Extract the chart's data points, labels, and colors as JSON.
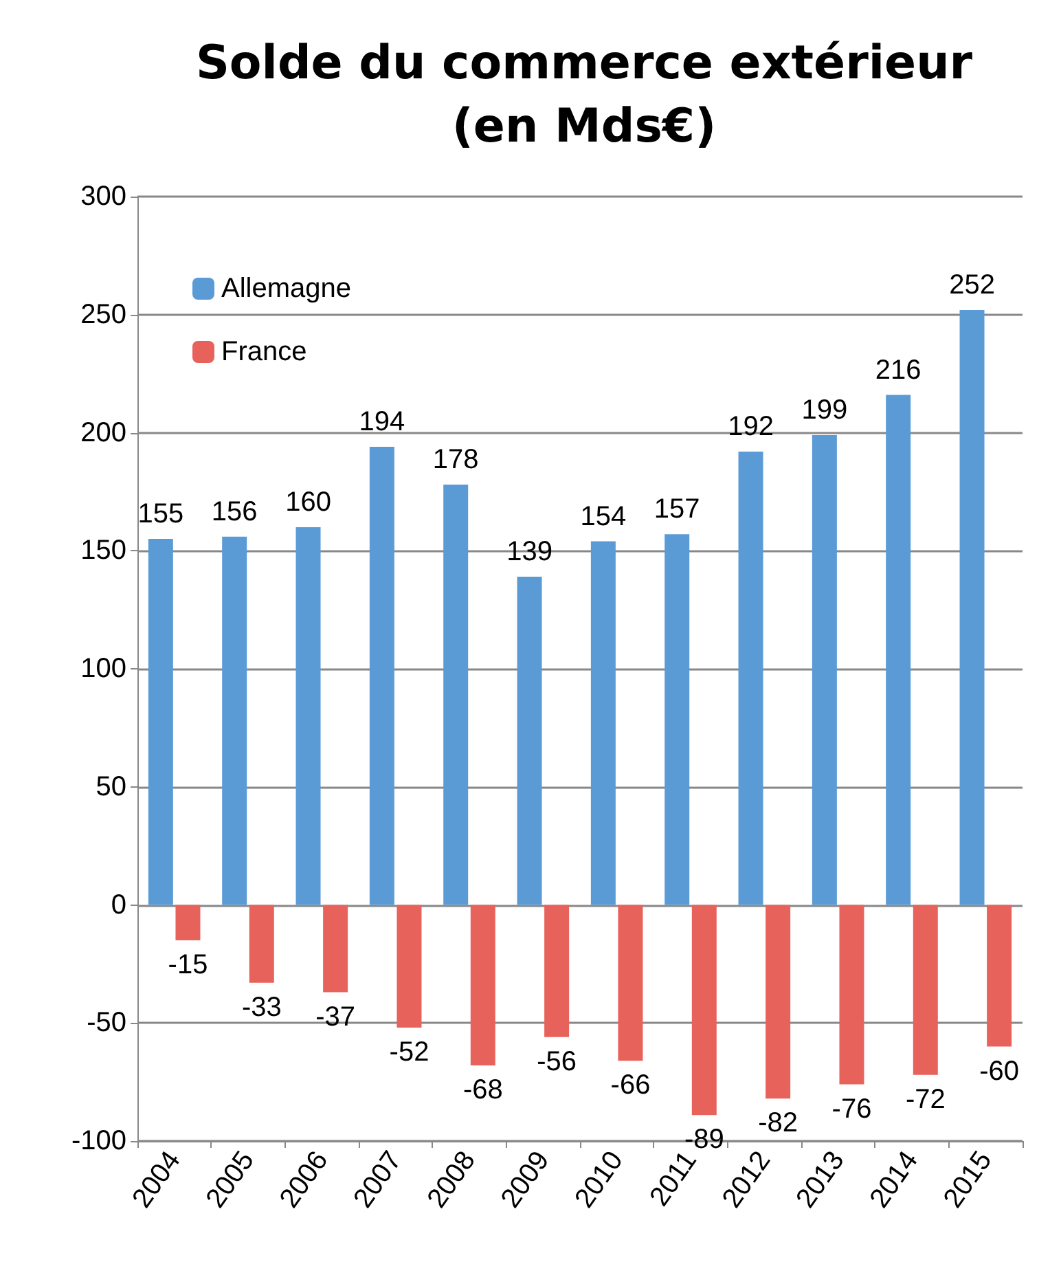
{
  "chart_data": {
    "type": "bar",
    "title": "Solde du commerce extérieur\n(en Mds€)",
    "categories": [
      "2004",
      "2005",
      "2006",
      "2007",
      "2008",
      "2009",
      "2010",
      "2011",
      "2012",
      "2013",
      "2014",
      "2015"
    ],
    "series": [
      {
        "name": "Allemagne",
        "color": "#5b9bd5",
        "values": [
          155,
          156,
          160,
          194,
          178,
          139,
          154,
          157,
          192,
          199,
          216,
          252
        ]
      },
      {
        "name": "France",
        "color": "#e8625c",
        "values": [
          -15,
          -33,
          -37,
          -52,
          -68,
          -56,
          -66,
          -89,
          -82,
          -76,
          -72,
          -60
        ]
      }
    ],
    "ylim": [
      -100,
      300
    ],
    "yticks": [
      -100,
      -50,
      0,
      50,
      100,
      150,
      200,
      250,
      300
    ],
    "grid": "y",
    "legend": "top left",
    "data_labels": true
  }
}
